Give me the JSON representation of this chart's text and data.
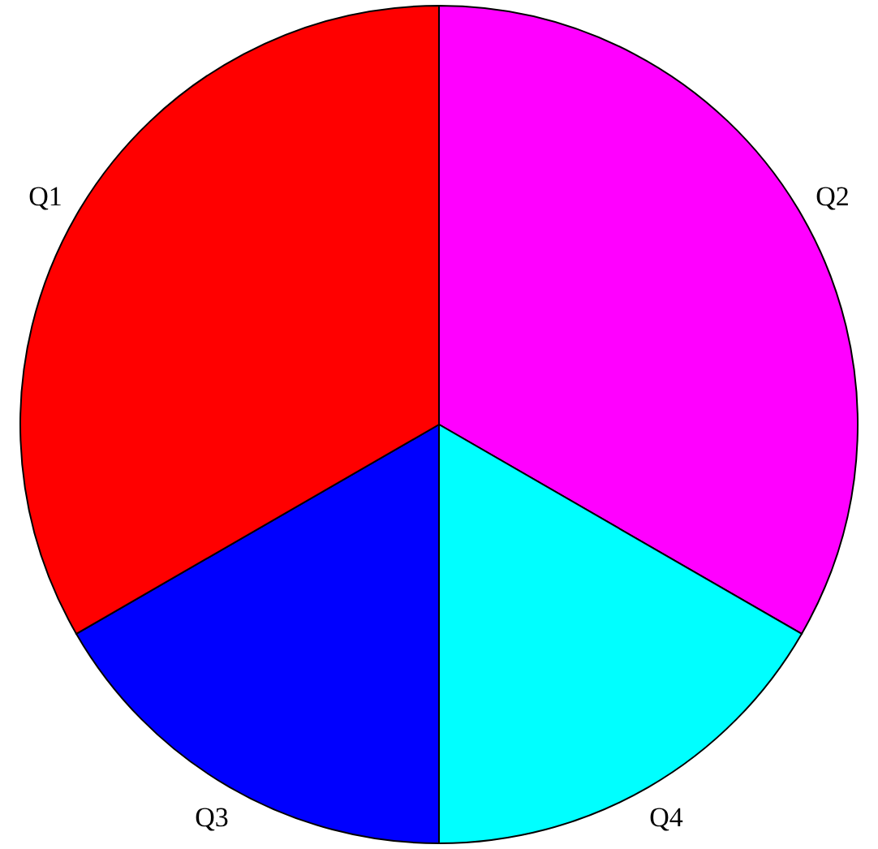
{
  "chart_data": {
    "type": "pie",
    "categories": [
      "Q2",
      "Q4",
      "Q3",
      "Q1"
    ],
    "values": [
      33.33,
      16.67,
      16.67,
      33.33
    ],
    "colors": [
      "#ff00ff",
      "#00ffff",
      "#0000ff",
      "#ff0000"
    ]
  }
}
